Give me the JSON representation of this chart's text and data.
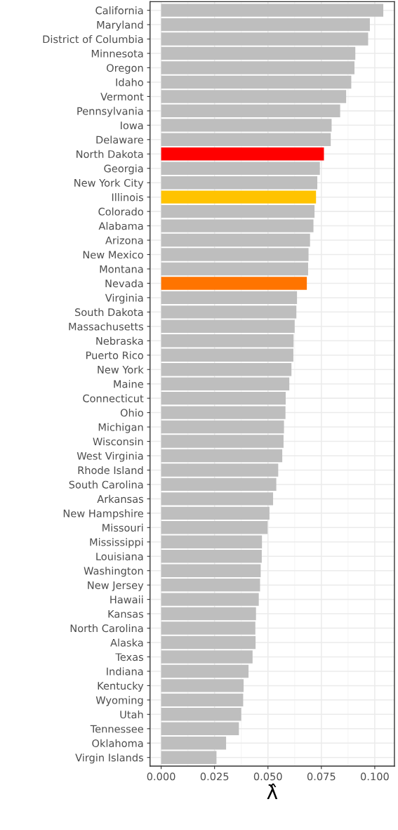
{
  "chart_data": {
    "type": "bar",
    "orientation": "horizontal",
    "xlabel": "λ̂",
    "categories": [
      "California",
      "Maryland",
      "District of Columbia",
      "Minnesota",
      "Oregon",
      "Idaho",
      "Vermont",
      "Pennsylvania",
      "Iowa",
      "Delaware",
      "North Dakota",
      "Georgia",
      "New York City",
      "Illinois",
      "Colorado",
      "Alabama",
      "Arizona",
      "New Mexico",
      "Montana",
      "Nevada",
      "Virginia",
      "South Dakota",
      "Massachusetts",
      "Nebraska",
      "Puerto Rico",
      "New York",
      "Maine",
      "Connecticut",
      "Ohio",
      "Michigan",
      "Wisconsin",
      "West Virginia",
      "Rhode Island",
      "South Carolina",
      "Arkansas",
      "New Hampshire",
      "Missouri",
      "Mississippi",
      "Louisiana",
      "Washington",
      "New Jersey",
      "Hawaii",
      "Kansas",
      "North Carolina",
      "Alaska",
      "Texas",
      "Indiana",
      "Kentucky",
      "Wyoming",
      "Utah",
      "Tennessee",
      "Oklahoma",
      "Virgin Islands"
    ],
    "values": [
      0.104,
      0.0977,
      0.0969,
      0.0909,
      0.0905,
      0.089,
      0.0866,
      0.0838,
      0.0798,
      0.0794,
      0.0762,
      0.0743,
      0.0731,
      0.0725,
      0.0718,
      0.0713,
      0.0697,
      0.069,
      0.0688,
      0.0682,
      0.0636,
      0.0633,
      0.0625,
      0.062,
      0.0619,
      0.061,
      0.06,
      0.0583,
      0.0582,
      0.0575,
      0.0573,
      0.0567,
      0.0548,
      0.0539,
      0.0524,
      0.0507,
      0.0498,
      0.0472,
      0.0471,
      0.0466,
      0.0463,
      0.0457,
      0.0444,
      0.0441,
      0.0442,
      0.0428,
      0.0409,
      0.0386,
      0.0384,
      0.0375,
      0.0364,
      0.0304,
      0.0259
    ],
    "colors": [
      "#bebebe",
      "#bebebe",
      "#bebebe",
      "#bebebe",
      "#bebebe",
      "#bebebe",
      "#bebebe",
      "#bebebe",
      "#bebebe",
      "#bebebe",
      "#ff0000",
      "#bebebe",
      "#bebebe",
      "#ffc300",
      "#bebebe",
      "#bebebe",
      "#bebebe",
      "#bebebe",
      "#bebebe",
      "#ff7400",
      "#bebebe",
      "#bebebe",
      "#bebebe",
      "#bebebe",
      "#bebebe",
      "#bebebe",
      "#bebebe",
      "#bebebe",
      "#bebebe",
      "#bebebe",
      "#bebebe",
      "#bebebe",
      "#bebebe",
      "#bebebe",
      "#bebebe",
      "#bebebe",
      "#bebebe",
      "#bebebe",
      "#bebebe",
      "#bebebe",
      "#bebebe",
      "#bebebe",
      "#bebebe",
      "#bebebe",
      "#bebebe",
      "#bebebe",
      "#bebebe",
      "#bebebe",
      "#bebebe",
      "#bebebe",
      "#bebebe",
      "#bebebe",
      "#bebebe"
    ],
    "xlim": [
      -0.0052,
      0.1092
    ],
    "xticks": [
      {
        "value": 0,
        "label": "0.000"
      },
      {
        "value": 0.025,
        "label": "0.025"
      },
      {
        "value": 0.05,
        "label": "0.050"
      },
      {
        "value": 0.075,
        "label": "0.075"
      },
      {
        "value": 0.1,
        "label": "0.100"
      }
    ],
    "grid": true
  }
}
